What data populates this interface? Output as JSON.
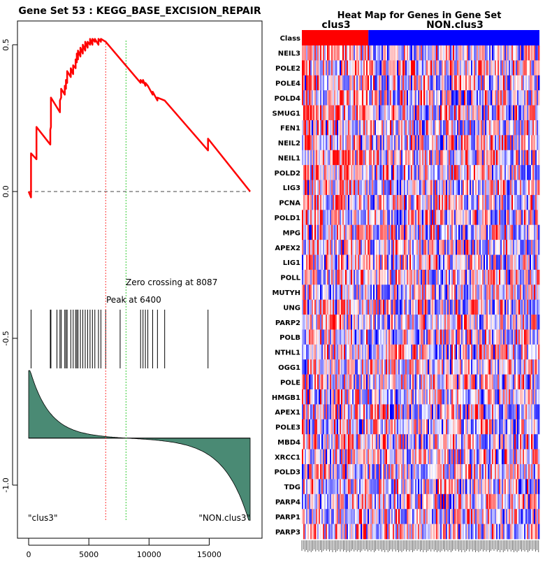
{
  "gsea_plot": {
    "title": "Gene Set  53 : KEGG_BASE_EXCISION_REPAIR",
    "peak_label": "Peak at 6400",
    "zero_crossing_label": "Zero crossing at 8087",
    "left_class_label": "\"clus3\"",
    "right_class_label": "\"NON.clus3\"",
    "colors": {
      "es_curve": "#ff0000",
      "peak_line": "#ff3333",
      "zero_line": "#33cc33",
      "ranked_fill": "#4a8a74",
      "ticks": "#000000"
    }
  },
  "heatmap": {
    "title": "Heat Map for Genes in Gene Set",
    "class_header": "Class",
    "class_labels": [
      "clus3",
      "NON.clus3"
    ],
    "class_colors": [
      "#ff0000",
      "#0000ff"
    ],
    "clus3_fraction": 0.28,
    "genes": [
      "NEIL3",
      "POLE2",
      "POLE4",
      "POLD4",
      "SMUG1",
      "FEN1",
      "NEIL2",
      "NEIL1",
      "POLD2",
      "LIG3",
      "PCNA",
      "POLD1",
      "MPG",
      "APEX2",
      "LIG1",
      "POLL",
      "MUTYH",
      "UNG",
      "PARP2",
      "POLB",
      "NTHL1",
      "OGG1",
      "POLE",
      "HMGB1",
      "APEX1",
      "POLE3",
      "MBD4",
      "XRCC1",
      "POLD3",
      "TDG",
      "PARP4",
      "PARP1",
      "PARP3"
    ]
  },
  "chart_data": [
    {
      "type": "line",
      "title": "Gene Set  53 : KEGG_BASE_EXCISION_REPAIR",
      "xlabel": "",
      "ylabel": "",
      "xlim": [
        -1000,
        19500
      ],
      "ylim": [
        -1.18,
        0.6
      ],
      "x_ticks": [
        0,
        5000,
        10000,
        15000
      ],
      "y_ticks": [
        0.5,
        0.0,
        -0.5,
        -1.0
      ],
      "x_tick_labels": [
        "0",
        "5000",
        "10000",
        "15000"
      ],
      "y_tick_labels": [
        "0.5",
        "0.0",
        "-0.5",
        "-1.0"
      ],
      "running_es": {
        "x": [
          0,
          200,
          200,
          650,
          650,
          1800,
          1800,
          1850,
          1850,
          2600,
          2600,
          2700,
          2700,
          3000,
          3000,
          3100,
          3100,
          3200,
          3200,
          3500,
          3500,
          3700,
          3700,
          3900,
          3900,
          4000,
          4000,
          4100,
          4100,
          4300,
          4300,
          4500,
          4500,
          4700,
          4700,
          4900,
          4900,
          5100,
          5100,
          5300,
          5300,
          5500,
          5500,
          5800,
          5800,
          6000,
          6000,
          6400,
          9300,
          9300,
          9500,
          9500,
          9700,
          9700,
          9900,
          9900,
          10300,
          10300,
          10700,
          10700,
          11300,
          11300,
          14900,
          14900,
          18400
        ],
        "y": [
          0.0,
          -0.02,
          0.13,
          0.11,
          0.22,
          0.16,
          0.21,
          0.22,
          0.32,
          0.27,
          0.31,
          0.32,
          0.35,
          0.33,
          0.36,
          0.35,
          0.38,
          0.37,
          0.41,
          0.39,
          0.42,
          0.4,
          0.43,
          0.42,
          0.45,
          0.44,
          0.47,
          0.45,
          0.48,
          0.46,
          0.49,
          0.47,
          0.5,
          0.48,
          0.51,
          0.49,
          0.51,
          0.5,
          0.52,
          0.5,
          0.52,
          0.51,
          0.52,
          0.5,
          0.52,
          0.51,
          0.52,
          0.51,
          0.37,
          0.38,
          0.37,
          0.38,
          0.36,
          0.37,
          0.36,
          0.36,
          0.33,
          0.34,
          0.31,
          0.32,
          0.31,
          0.31,
          0.14,
          0.18,
          0.0
        ]
      },
      "hit_positions": [
        1800,
        1850,
        2350,
        2600,
        2700,
        3000,
        3100,
        3200,
        3500,
        3700,
        3900,
        4000,
        4100,
        4300,
        4500,
        4700,
        4900,
        5100,
        5300,
        5500,
        5800,
        6000,
        6400,
        7600,
        9300,
        9500,
        9700,
        9900,
        10300,
        10700,
        11300,
        14900,
        200
      ],
      "peak_position": 6400,
      "zero_crossing": 8087,
      "ranked_metric": {
        "zero_level": -0.84,
        "top_value": -0.61,
        "bottom_value": -1.12
      }
    },
    {
      "type": "heatmap",
      "title": "Heat Map for Genes in Gene Set",
      "rows": 33,
      "x_groups": [
        "clus3",
        "NON.clus3"
      ],
      "color_scale": [
        "#0000ff",
        "#ffffff",
        "#ff0000"
      ]
    }
  ]
}
